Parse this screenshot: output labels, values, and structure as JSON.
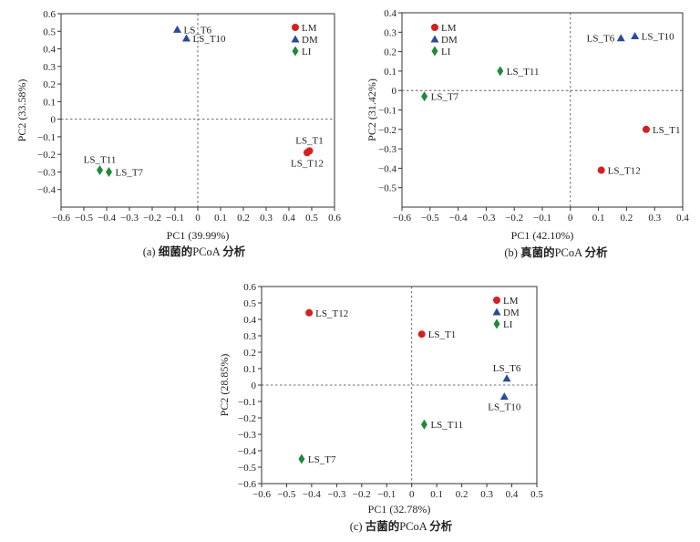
{
  "chart_data": [
    {
      "type": "scatter",
      "caption_prefix": "(a)",
      "caption_bold": "细菌的",
      "caption_mid": "PCoA",
      "caption_bold2": "分析",
      "xlabel": "PC1 (39.99%)",
      "ylabel": "PC2 (33.58%)",
      "xlim": [
        -0.6,
        0.6
      ],
      "ylim": [
        -0.5,
        0.6
      ],
      "xticks": [
        -0.6,
        -0.5,
        -0.4,
        -0.3,
        -0.2,
        -0.1,
        0,
        0.1,
        0.2,
        0.3,
        0.4,
        0.5,
        0.6
      ],
      "yticks": [
        -0.4,
        -0.3,
        -0.2,
        -0.1,
        0,
        0.1,
        0.2,
        0.3,
        0.4,
        0.5,
        0.6
      ],
      "legend": [
        "LM",
        "DM",
        "LI"
      ],
      "legend_position": "top-right",
      "points": [
        {
          "label": "LS_T6",
          "x": -0.09,
          "y": 0.51,
          "group": "DM",
          "label_pos": "right"
        },
        {
          "label": "LS_T10",
          "x": -0.05,
          "y": 0.46,
          "group": "DM",
          "label_pos": "right"
        },
        {
          "label": "LS_T1",
          "x": 0.49,
          "y": -0.18,
          "group": "LM",
          "label_pos": "above"
        },
        {
          "label": "LS_T12",
          "x": 0.48,
          "y": -0.19,
          "group": "LM",
          "label_pos": "below"
        },
        {
          "label": "LS_T11",
          "x": -0.43,
          "y": -0.29,
          "group": "LI",
          "label_pos": "above"
        },
        {
          "label": "LS_T7",
          "x": -0.39,
          "y": -0.3,
          "group": "LI",
          "label_pos": "right"
        }
      ]
    },
    {
      "type": "scatter",
      "caption_prefix": "(b)",
      "caption_bold": "真菌的",
      "caption_mid": "PCoA",
      "caption_bold2": "分析",
      "xlabel": "PC1 (42.10%)",
      "ylabel": "PC2 (31.42%)",
      "xlim": [
        -0.6,
        0.4
      ],
      "ylim": [
        -0.6,
        0.4
      ],
      "xticks": [
        -0.6,
        -0.5,
        -0.4,
        -0.3,
        -0.2,
        -0.1,
        0,
        0.1,
        0.2,
        0.3,
        0.4
      ],
      "yticks": [
        -0.5,
        -0.4,
        -0.3,
        -0.2,
        -0.1,
        0,
        0.1,
        0.2,
        0.3,
        0.4
      ],
      "legend": [
        "LM",
        "DM",
        "LI"
      ],
      "legend_position": "top-left",
      "points": [
        {
          "label": "LS_T6",
          "x": 0.18,
          "y": 0.27,
          "group": "DM",
          "label_pos": "left"
        },
        {
          "label": "LS_T10",
          "x": 0.23,
          "y": 0.28,
          "group": "DM",
          "label_pos": "right"
        },
        {
          "label": "LS_T11",
          "x": -0.25,
          "y": 0.1,
          "group": "LI",
          "label_pos": "right"
        },
        {
          "label": "LS_T7",
          "x": -0.52,
          "y": -0.03,
          "group": "LI",
          "label_pos": "right"
        },
        {
          "label": "LS_T1",
          "x": 0.27,
          "y": -0.2,
          "group": "LM",
          "label_pos": "right"
        },
        {
          "label": "LS_T12",
          "x": 0.11,
          "y": -0.41,
          "group": "LM",
          "label_pos": "right"
        }
      ]
    },
    {
      "type": "scatter",
      "caption_prefix": "(c)",
      "caption_bold": "古菌的",
      "caption_mid": "PCoA",
      "caption_bold2": "分析",
      "xlabel": "PC1 (32.78%)",
      "ylabel": "PC2 (28.85%)",
      "xlim": [
        -0.6,
        0.5
      ],
      "ylim": [
        -0.6,
        0.6
      ],
      "xticks": [
        -0.6,
        -0.5,
        -0.4,
        -0.3,
        -0.2,
        -0.1,
        0,
        0.1,
        0.2,
        0.3,
        0.4,
        0.5
      ],
      "yticks": [
        -0.6,
        -0.5,
        -0.4,
        -0.3,
        -0.2,
        -0.1,
        0,
        0.1,
        0.2,
        0.3,
        0.4,
        0.5,
        0.6
      ],
      "legend": [
        "LM",
        "DM",
        "LI"
      ],
      "legend_position": "top-right",
      "points": [
        {
          "label": "LS_T12",
          "x": -0.41,
          "y": 0.44,
          "group": "LM",
          "label_pos": "right"
        },
        {
          "label": "LS_T1",
          "x": 0.04,
          "y": 0.31,
          "group": "LM",
          "label_pos": "right"
        },
        {
          "label": "LS_T6",
          "x": 0.38,
          "y": 0.04,
          "group": "DM",
          "label_pos": "above"
        },
        {
          "label": "LS_T10",
          "x": 0.37,
          "y": -0.07,
          "group": "DM",
          "label_pos": "below"
        },
        {
          "label": "LS_T11",
          "x": 0.05,
          "y": -0.24,
          "group": "LI",
          "label_pos": "right"
        },
        {
          "label": "LS_T7",
          "x": -0.44,
          "y": -0.45,
          "group": "LI",
          "label_pos": "right"
        }
      ]
    }
  ],
  "colors": {
    "LM": "#d42020",
    "DM": "#2a4a9a",
    "LI": "#1f8a3a"
  },
  "marker_shapes": {
    "LM": "circle",
    "DM": "triangle",
    "LI": "diamond"
  }
}
